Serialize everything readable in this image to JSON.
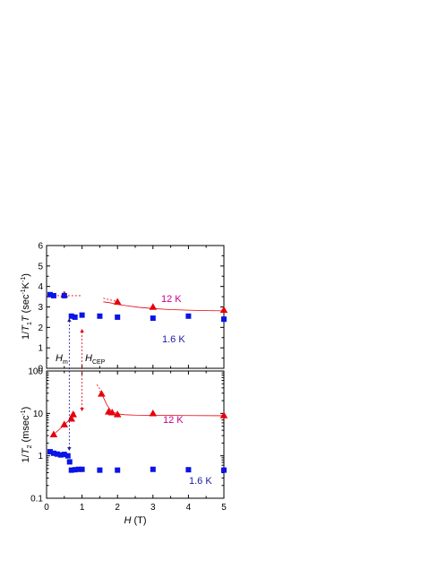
{
  "colors": {
    "red": "#e8000b",
    "blue": "#0a14e6",
    "magenta": "#c8008c",
    "dark_blue": "#1a1aa0"
  },
  "chart_data": [
    {
      "type": "scatter",
      "panel": "top",
      "ylabel_parts": [
        "1/",
        "T",
        "1",
        "T",
        " (sec",
        "-1",
        "K",
        "-1",
        ")"
      ],
      "xlim": [
        0,
        5
      ],
      "ylim": [
        0,
        6
      ],
      "yticks": [
        "0",
        "1",
        "2",
        "3",
        "4",
        "5",
        "6"
      ],
      "scale": "linear",
      "series": [
        {
          "marker": "triangle",
          "color": "red",
          "label": "12 K",
          "x": [
            0.5,
            2.0,
            3.0,
            5.0
          ],
          "y": [
            3.6,
            3.25,
            3.0,
            2.85
          ],
          "fit_x": [
            1.6,
            1.8,
            2.0,
            2.3,
            2.6,
            3.0,
            3.5,
            4.0,
            4.5,
            5.0
          ],
          "fit_y": [
            3.25,
            3.2,
            3.12,
            3.05,
            2.98,
            2.92,
            2.87,
            2.84,
            2.82,
            2.81
          ],
          "dashed_x": [
            [
              0.3,
              1.0
            ],
            [
              1.6,
              1.95
            ]
          ],
          "dashed_y": [
            [
              3.55,
              3.55
            ],
            [
              3.42,
              3.28
            ]
          ]
        },
        {
          "marker": "square",
          "color": "blue",
          "label": "1.6 K",
          "x": [
            0.1,
            0.2,
            0.5,
            0.7,
            0.8,
            1.0,
            1.5,
            2.0,
            3.0,
            4.0,
            5.0
          ],
          "y": [
            3.6,
            3.55,
            3.55,
            2.55,
            2.5,
            2.6,
            2.55,
            2.5,
            2.45,
            2.55,
            2.4
          ]
        }
      ],
      "annotations": [
        "H",
        "m",
        "H",
        "CEP"
      ]
    },
    {
      "type": "scatter",
      "panel": "bottom",
      "ylabel_parts": [
        "1/",
        "T",
        "2",
        " (msec",
        "-1",
        ")"
      ],
      "xlabel_parts": [
        "H",
        " (T)"
      ],
      "xlim": [
        0,
        5
      ],
      "xticks": [
        "0",
        "1",
        "2",
        "3",
        "4",
        "5"
      ],
      "ylim": [
        0.1,
        100
      ],
      "yticks": [
        "0.1",
        "1",
        "10",
        "100"
      ],
      "scale": "log",
      "series": [
        {
          "marker": "triangle",
          "color": "red",
          "label": "12 K",
          "x": [
            0.2,
            0.5,
            0.7,
            0.75,
            1.55,
            1.75,
            1.85,
            2.0,
            3.0,
            5.0
          ],
          "y": [
            3.2,
            5.5,
            7.5,
            9.5,
            29,
            11,
            10.5,
            9.5,
            10,
            9
          ],
          "fit_x": [
            0.2,
            0.4,
            0.6,
            0.7,
            0.8
          ],
          "fit_y": [
            3.2,
            4.5,
            6.5,
            8.5,
            10.5
          ],
          "fit2_x": [
            1.5,
            1.6,
            1.7,
            1.8,
            1.9,
            2.0,
            2.2,
            2.5,
            3.0,
            4.0,
            5.0
          ],
          "fit2_y": [
            34,
            24,
            16,
            12,
            10.5,
            9.8,
            9.3,
            9.1,
            9.0,
            8.9,
            8.8
          ],
          "dashed_x": [
            1.42,
            1.5
          ],
          "dashed_y": [
            48,
            38
          ]
        },
        {
          "marker": "square",
          "color": "blue",
          "label": "1.6 K",
          "x": [
            0.1,
            0.2,
            0.3,
            0.4,
            0.5,
            0.6,
            0.65,
            0.7,
            0.8,
            0.9,
            1.0,
            1.5,
            2.0,
            3.0,
            4.0,
            5.0
          ],
          "y": [
            1.25,
            1.15,
            1.1,
            1.05,
            1.08,
            1.0,
            0.72,
            0.46,
            0.47,
            0.48,
            0.48,
            0.46,
            0.46,
            0.48,
            0.47,
            0.46
          ]
        }
      ]
    }
  ]
}
